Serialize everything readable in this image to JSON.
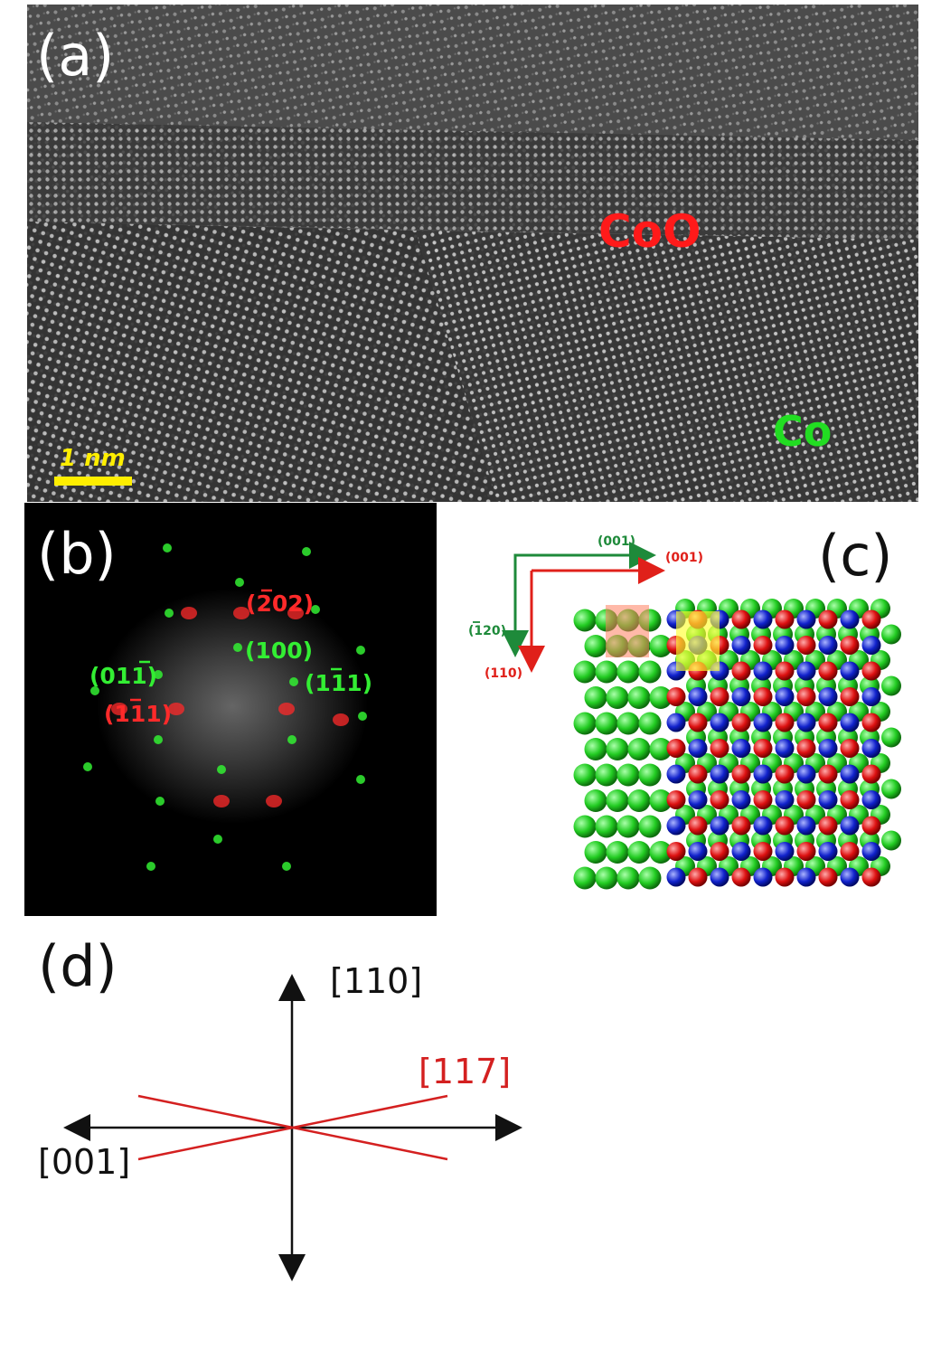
{
  "figure": {
    "panel_a": {
      "label": "(a)",
      "phase_labels": {
        "coo": "CoO",
        "co": "Co"
      },
      "scale_bar": "1 nm",
      "colors": {
        "coo": "#ff1a1a",
        "co": "#22dd22",
        "scale": "#ffee00"
      }
    },
    "panel_b": {
      "label": "(b)",
      "red_indices": {
        "r1": "202",
        "r1_bar": "2",
        "r2_a": "(1",
        "r2_bar": "1",
        "r2_b": "1)"
      },
      "spots": {
        "s100": "(100)",
        "s011": "(01",
        "s011_bar": "1",
        "s011_end": ")",
        "s1_1_1a": "(1",
        "s1_1_1bar": "1",
        "s1_1_1b": "1)"
      },
      "red_paren_open": "(",
      "red_paren_close": ")",
      "colors": {
        "red": "#ff2a2a",
        "green": "#33ee33"
      }
    },
    "panel_c": {
      "label": "(c)",
      "axes": {
        "green_h": "(001)",
        "red_h": "(001)",
        "green_v_open": "(",
        "green_v_bar": "1",
        "green_v_rest": "20)",
        "red_v": "(110)"
      },
      "colors": {
        "green": "#1e8a3a",
        "red": "#e0201a",
        "atom_green": "#22cc22",
        "atom_red": "#dd1111",
        "atom_blue": "#1122cc"
      }
    },
    "panel_d": {
      "label": "(d)",
      "axis_up": "[110]",
      "axis_left": "[001]",
      "red_axis": "[117]",
      "colors": {
        "red": "#d42020",
        "black": "#111111"
      }
    }
  }
}
